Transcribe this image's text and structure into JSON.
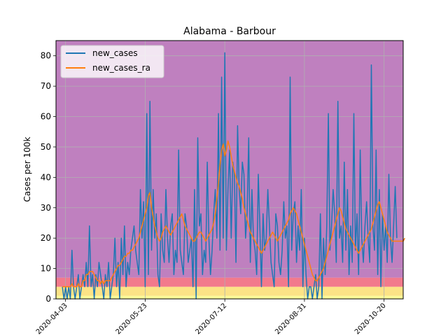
{
  "chart_data": {
    "type": "line",
    "title": "Alabama - Barbour",
    "xlabel": "",
    "ylabel": "Cases per 100k",
    "x_start": "2020-04-01",
    "x_ticks": [
      "2020-04-03",
      "2020-05-23",
      "2020-07-12",
      "2020-08-31",
      "2020-10-20"
    ],
    "ylim": [
      0,
      85
    ],
    "yticks": [
      0,
      10,
      20,
      30,
      40,
      50,
      60,
      70,
      80
    ],
    "grid": true,
    "legend_position": "top-left",
    "background_bands": [
      {
        "from": 0,
        "to": 1,
        "color": "#fdfd96"
      },
      {
        "from": 1,
        "to": 4,
        "color": "#fce386"
      },
      {
        "from": 4,
        "to": 7,
        "color": "#f27a8c"
      },
      {
        "from": 7,
        "to": 85,
        "color": "#bf80bf"
      }
    ],
    "series": [
      {
        "name": "new_cases",
        "color": "#1f77b4",
        "values": [
          4,
          0,
          4,
          0,
          4,
          0,
          16,
          4,
          0,
          4,
          8,
          0,
          4,
          8,
          4,
          12,
          4,
          24,
          4,
          8,
          0,
          8,
          4,
          12,
          8,
          4,
          0,
          8,
          4,
          12,
          0,
          4,
          8,
          20,
          4,
          12,
          0,
          20,
          8,
          24,
          4,
          12,
          8,
          16,
          20,
          24,
          16,
          12,
          8,
          36,
          20,
          32,
          4,
          61,
          8,
          65,
          16,
          36,
          20,
          28,
          8,
          4,
          28,
          16,
          12,
          36,
          20,
          12,
          24,
          28,
          8,
          16,
          12,
          49,
          16,
          12,
          8,
          28,
          24,
          12,
          16,
          20,
          4,
          36,
          0,
          53,
          24,
          28,
          8,
          16,
          12,
          45,
          20,
          8,
          16,
          28,
          36,
          20,
          61,
          16,
          73,
          20,
          81,
          16,
          36,
          49,
          20,
          45,
          41,
          12,
          57,
          36,
          28,
          45,
          41,
          20,
          28,
          53,
          12,
          36,
          20,
          16,
          8,
          41,
          24,
          4,
          28,
          16,
          20,
          36,
          24,
          12,
          8,
          4,
          28,
          24,
          12,
          8,
          16,
          32,
          20,
          24,
          4,
          73,
          16,
          28,
          32,
          12,
          24,
          16,
          36,
          4,
          20,
          8,
          0,
          4,
          4,
          0,
          4,
          8,
          0,
          4,
          28,
          0,
          20,
          8,
          24,
          61,
          16,
          24,
          36,
          28,
          12,
          65,
          20,
          24,
          12,
          45,
          16,
          36,
          8,
          24,
          12,
          61,
          16,
          28,
          8,
          49,
          20,
          12,
          24,
          32,
          20,
          12,
          77,
          24,
          16,
          49,
          8,
          36,
          4,
          28,
          16,
          24,
          12,
          41,
          20,
          12,
          24,
          37,
          20
        ]
      },
      {
        "name": "new_cases_ra",
        "color": "#ff7f0e",
        "values": [
          4,
          4,
          4,
          4,
          4,
          4,
          5,
          4,
          4,
          4,
          5,
          4,
          4,
          6,
          6,
          8,
          8,
          9,
          9,
          9,
          8,
          7,
          6,
          6,
          5,
          6,
          5,
          6,
          6,
          6,
          6,
          7,
          8,
          9,
          10,
          11,
          11,
          12,
          13,
          14,
          14,
          15,
          15,
          16,
          16,
          17,
          18,
          19,
          20,
          22,
          24,
          26,
          28,
          30,
          34,
          35,
          30,
          27,
          24,
          22,
          20,
          19,
          20,
          22,
          23,
          24,
          23,
          22,
          21,
          22,
          23,
          24,
          25,
          26,
          27,
          28,
          26,
          24,
          23,
          22,
          21,
          20,
          19,
          19,
          20,
          21,
          22,
          22,
          21,
          20,
          19,
          20,
          21,
          22,
          23,
          25,
          28,
          33,
          38,
          44,
          49,
          51,
          47,
          49,
          52,
          50,
          47,
          44,
          42,
          40,
          38,
          37,
          35,
          33,
          30,
          28,
          26,
          24,
          22,
          21,
          20,
          19,
          18,
          17,
          16,
          15,
          16,
          17,
          18,
          19,
          20,
          21,
          22,
          21,
          20,
          19,
          20,
          21,
          22,
          23,
          24,
          25,
          26,
          28,
          29,
          30,
          29,
          28,
          26,
          24,
          22,
          20,
          18,
          16,
          14,
          12,
          10,
          8,
          7,
          6,
          6,
          7,
          8,
          9,
          10,
          12,
          14,
          16,
          18,
          20,
          22,
          24,
          26,
          28,
          30,
          29,
          27,
          25,
          23,
          22,
          21,
          20,
          19,
          18,
          17,
          16,
          15,
          16,
          17,
          18,
          19,
          20,
          21,
          22,
          23,
          25,
          27,
          29,
          31,
          32,
          30,
          28,
          26,
          24,
          22,
          21,
          20,
          19,
          19,
          19,
          19,
          19,
          19,
          19,
          19,
          20
        ]
      }
    ]
  }
}
